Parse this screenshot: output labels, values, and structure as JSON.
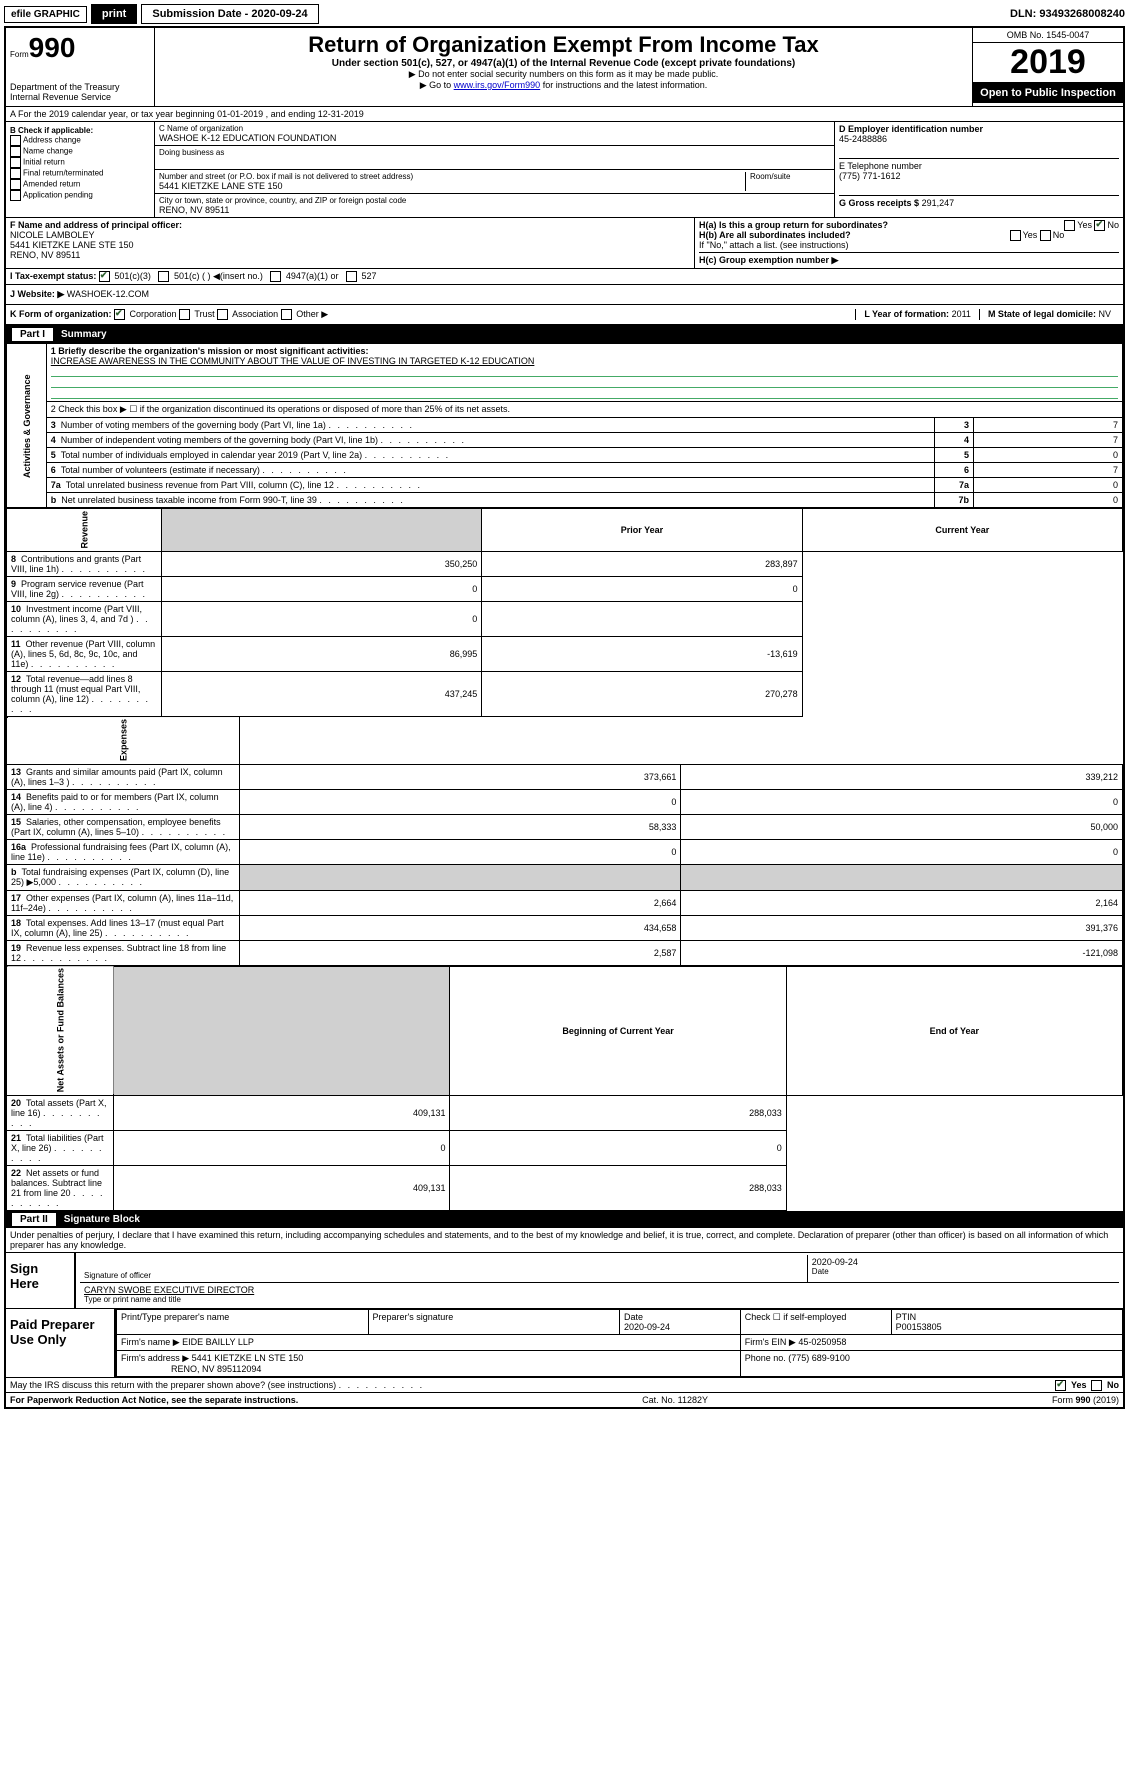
{
  "topbar": {
    "efile": "efile GRAPHIC",
    "print": "print",
    "submission_label": "Submission Date - 2020-09-24",
    "dln": "DLN: 93493268008240"
  },
  "header": {
    "form_prefix": "Form",
    "form_number": "990",
    "dept": "Department of the Treasury",
    "irs": "Internal Revenue Service",
    "title": "Return of Organization Exempt From Income Tax",
    "subtitle": "Under section 501(c), 527, or 4947(a)(1) of the Internal Revenue Code (except private foundations)",
    "note1": "▶ Do not enter social security numbers on this form as it may be made public.",
    "note2": "▶ Go to www.irs.gov/Form990 for instructions and the latest information.",
    "link": "www.irs.gov/Form990",
    "omb": "OMB No. 1545-0047",
    "year": "2019",
    "open": "Open to Public Inspection"
  },
  "section_a": {
    "text": "A For the 2019 calendar year, or tax year beginning 01-01-2019    , and ending 12-31-2019"
  },
  "b": {
    "label": "B Check if applicable:",
    "opts": [
      "Address change",
      "Name change",
      "Initial return",
      "Final return/terminated",
      "Amended return",
      "Application pending"
    ]
  },
  "c": {
    "name_label": "C Name of organization",
    "name": "WASHOE K-12 EDUCATION FOUNDATION",
    "dba_label": "Doing business as",
    "dba": "",
    "addr_label": "Number and street (or P.O. box if mail is not delivered to street address)",
    "room_label": "Room/suite",
    "addr": "5441 KIETZKE LANE STE 150",
    "city_label": "City or town, state or province, country, and ZIP or foreign postal code",
    "city": "RENO, NV  89511"
  },
  "d": {
    "label": "D Employer identification number",
    "ein": "45-2488886",
    "phone_label": "E Telephone number",
    "phone": "(775) 771-1612",
    "gross_label": "G Gross receipts $",
    "gross": "291,247"
  },
  "f": {
    "label": "F  Name and address of principal officer:",
    "name": "NICOLE LAMBOLEY",
    "addr1": "5441 KIETZKE LANE STE 150",
    "addr2": "RENO, NV  89511"
  },
  "h": {
    "a_label": "H(a)  Is this a group return for subordinates?",
    "b_label": "H(b)  Are all subordinates included?",
    "if_no": "If \"No,\" attach a list. (see instructions)",
    "c_label": "H(c)  Group exemption number ▶"
  },
  "i": {
    "label": "I  Tax-exempt status:",
    "opts": [
      "501(c)(3)",
      "501(c) (  ) ◀(insert no.)",
      "4947(a)(1) or",
      "527"
    ]
  },
  "j": {
    "label": "J  Website: ▶",
    "value": "WASHOEK-12.COM"
  },
  "k": {
    "label": "K Form of organization:",
    "opts": [
      "Corporation",
      "Trust",
      "Association",
      "Other ▶"
    ],
    "l_label": "L Year of formation:",
    "l_val": "2011",
    "m_label": "M State of legal domicile:",
    "m_val": "NV"
  },
  "part1": {
    "title": "Part I",
    "subtitle": "Summary",
    "q1_label": "1  Briefly describe the organization's mission or most significant activities:",
    "q1_text": "INCREASE AWARENESS IN THE COMMUNITY ABOUT THE VALUE OF INVESTING IN TARGETED K-12 EDUCATION",
    "q2": "2   Check this box ▶ ☐  if the organization discontinued its operations or disposed of more than 25% of its net assets.",
    "governance_label": "Activities & Governance",
    "revenue_label": "Revenue",
    "expenses_label": "Expenses",
    "netassets_label": "Net Assets or Fund Balances",
    "rows_gov": [
      {
        "n": "3",
        "t": "Number of voting members of the governing body (Part VI, line 1a)",
        "box": "3",
        "v": "7"
      },
      {
        "n": "4",
        "t": "Number of independent voting members of the governing body (Part VI, line 1b)",
        "box": "4",
        "v": "7"
      },
      {
        "n": "5",
        "t": "Total number of individuals employed in calendar year 2019 (Part V, line 2a)",
        "box": "5",
        "v": "0"
      },
      {
        "n": "6",
        "t": "Total number of volunteers (estimate if necessary)",
        "box": "6",
        "v": "7"
      },
      {
        "n": "7a",
        "t": "Total unrelated business revenue from Part VIII, column (C), line 12",
        "box": "7a",
        "v": "0"
      },
      {
        "n": "b",
        "t": "Net unrelated business taxable income from Form 990-T, line 39",
        "box": "7b",
        "v": "0"
      }
    ],
    "col_prior": "Prior Year",
    "col_current": "Current Year",
    "rows_rev": [
      {
        "n": "8",
        "t": "Contributions and grants (Part VIII, line 1h)",
        "p": "350,250",
        "c": "283,897"
      },
      {
        "n": "9",
        "t": "Program service revenue (Part VIII, line 2g)",
        "p": "0",
        "c": "0"
      },
      {
        "n": "10",
        "t": "Investment income (Part VIII, column (A), lines 3, 4, and 7d )",
        "p": "0",
        "c": ""
      },
      {
        "n": "11",
        "t": "Other revenue (Part VIII, column (A), lines 5, 6d, 8c, 9c, 10c, and 11e)",
        "p": "86,995",
        "c": "-13,619"
      },
      {
        "n": "12",
        "t": "Total revenue—add lines 8 through 11 (must equal Part VIII, column (A), line 12)",
        "p": "437,245",
        "c": "270,278"
      }
    ],
    "rows_exp": [
      {
        "n": "13",
        "t": "Grants and similar amounts paid (Part IX, column (A), lines 1–3 )",
        "p": "373,661",
        "c": "339,212"
      },
      {
        "n": "14",
        "t": "Benefits paid to or for members (Part IX, column (A), line 4)",
        "p": "0",
        "c": "0"
      },
      {
        "n": "15",
        "t": "Salaries, other compensation, employee benefits (Part IX, column (A), lines 5–10)",
        "p": "58,333",
        "c": "50,000"
      },
      {
        "n": "16a",
        "t": "Professional fundraising fees (Part IX, column (A), line 11e)",
        "p": "0",
        "c": "0"
      },
      {
        "n": "b",
        "t": "Total fundraising expenses (Part IX, column (D), line 25) ▶5,000",
        "p": "",
        "c": "",
        "grey": true
      },
      {
        "n": "17",
        "t": "Other expenses (Part IX, column (A), lines 11a–11d, 11f–24e)",
        "p": "2,664",
        "c": "2,164"
      },
      {
        "n": "18",
        "t": "Total expenses. Add lines 13–17 (must equal Part IX, column (A), line 25)",
        "p": "434,658",
        "c": "391,376"
      },
      {
        "n": "19",
        "t": "Revenue less expenses. Subtract line 18 from line 12",
        "p": "2,587",
        "c": "-121,098"
      }
    ],
    "col_beg": "Beginning of Current Year",
    "col_end": "End of Year",
    "rows_net": [
      {
        "n": "20",
        "t": "Total assets (Part X, line 16)",
        "p": "409,131",
        "c": "288,033"
      },
      {
        "n": "21",
        "t": "Total liabilities (Part X, line 26)",
        "p": "0",
        "c": "0"
      },
      {
        "n": "22",
        "t": "Net assets or fund balances. Subtract line 21 from line 20",
        "p": "409,131",
        "c": "288,033"
      }
    ]
  },
  "part2": {
    "title": "Part II",
    "subtitle": "Signature Block",
    "perjury": "Under penalties of perjury, I declare that I have examined this return, including accompanying schedules and statements, and to the best of my knowledge and belief, it is true, correct, and complete. Declaration of preparer (other than officer) is based on all information of which preparer has any knowledge.",
    "sign_here": "Sign Here",
    "sig_officer": "Signature of officer",
    "sig_date": "2020-09-24",
    "date_label": "Date",
    "officer_name": "CARYN SWOBE  EXECUTIVE DIRECTOR",
    "type_name": "Type or print name and title",
    "paid": "Paid Preparer Use Only",
    "prep_name_label": "Print/Type preparer's name",
    "prep_sig_label": "Preparer's signature",
    "prep_date_label": "Date",
    "prep_date": "2020-09-24",
    "check_if": "Check ☐ if self-employed",
    "ptin_label": "PTIN",
    "ptin": "P00153805",
    "firm_name_label": "Firm's name    ▶",
    "firm_name": "EIDE BAILLY LLP",
    "firm_ein_label": "Firm's EIN ▶",
    "firm_ein": "45-0250958",
    "firm_addr_label": "Firm's address ▶",
    "firm_addr1": "5441 KIETZKE LN STE 150",
    "firm_addr2": "RENO, NV  895112094",
    "firm_phone_label": "Phone no.",
    "firm_phone": "(775) 689-9100",
    "discuss": "May the IRS discuss this return with the preparer shown above? (see instructions)",
    "yes": "Yes",
    "no": "No"
  },
  "footer": {
    "left": "For Paperwork Reduction Act Notice, see the separate instructions.",
    "mid": "Cat. No. 11282Y",
    "right": "Form 990 (2019)"
  }
}
